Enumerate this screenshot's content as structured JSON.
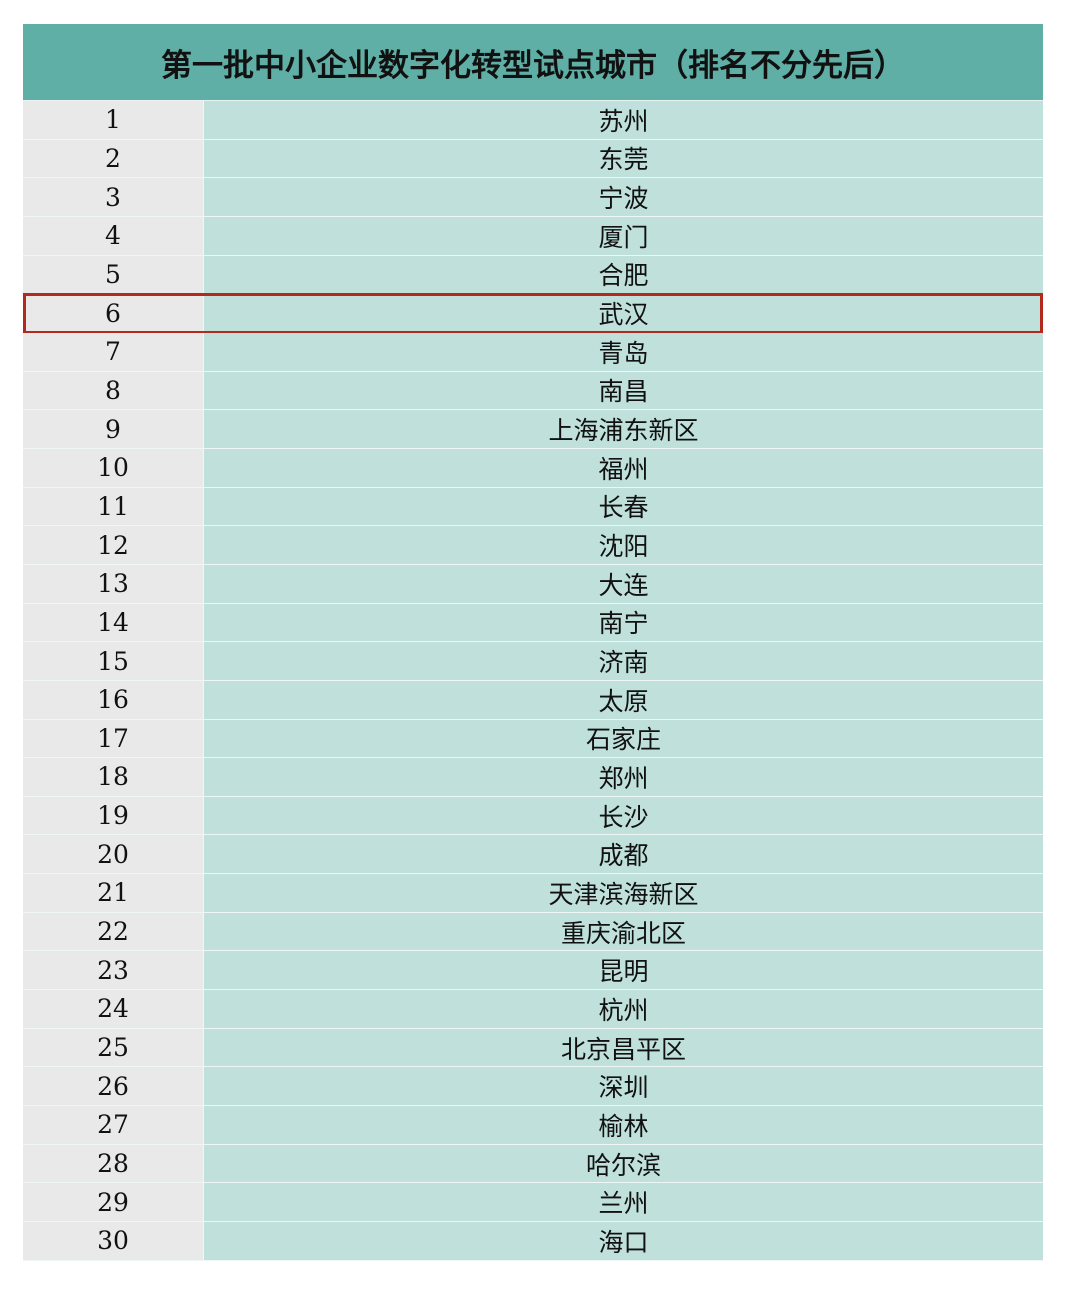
{
  "title": "第一批中小企业数字化转型试点城市（排名不分先后）",
  "highlight_color": "#b3291b",
  "highlighted_row": 6,
  "rows": [
    {
      "no": "1",
      "city": "苏州"
    },
    {
      "no": "2",
      "city": "东莞"
    },
    {
      "no": "3",
      "city": "宁波"
    },
    {
      "no": "4",
      "city": "厦门"
    },
    {
      "no": "5",
      "city": "合肥"
    },
    {
      "no": "6",
      "city": "武汉"
    },
    {
      "no": "7",
      "city": "青岛"
    },
    {
      "no": "8",
      "city": "南昌"
    },
    {
      "no": "9",
      "city": "上海浦东新区"
    },
    {
      "no": "10",
      "city": "福州"
    },
    {
      "no": "11",
      "city": "长春"
    },
    {
      "no": "12",
      "city": "沈阳"
    },
    {
      "no": "13",
      "city": "大连"
    },
    {
      "no": "14",
      "city": "南宁"
    },
    {
      "no": "15",
      "city": "济南"
    },
    {
      "no": "16",
      "city": "太原"
    },
    {
      "no": "17",
      "city": "石家庄"
    },
    {
      "no": "18",
      "city": "郑州"
    },
    {
      "no": "19",
      "city": "长沙"
    },
    {
      "no": "20",
      "city": "成都"
    },
    {
      "no": "21",
      "city": "天津滨海新区"
    },
    {
      "no": "22",
      "city": "重庆渝北区"
    },
    {
      "no": "23",
      "city": "昆明"
    },
    {
      "no": "24",
      "city": "杭州"
    },
    {
      "no": "25",
      "city": "北京昌平区"
    },
    {
      "no": "26",
      "city": "深圳"
    },
    {
      "no": "27",
      "city": "榆林"
    },
    {
      "no": "28",
      "city": "哈尔滨"
    },
    {
      "no": "29",
      "city": "兰州"
    },
    {
      "no": "30",
      "city": "海口"
    }
  ]
}
